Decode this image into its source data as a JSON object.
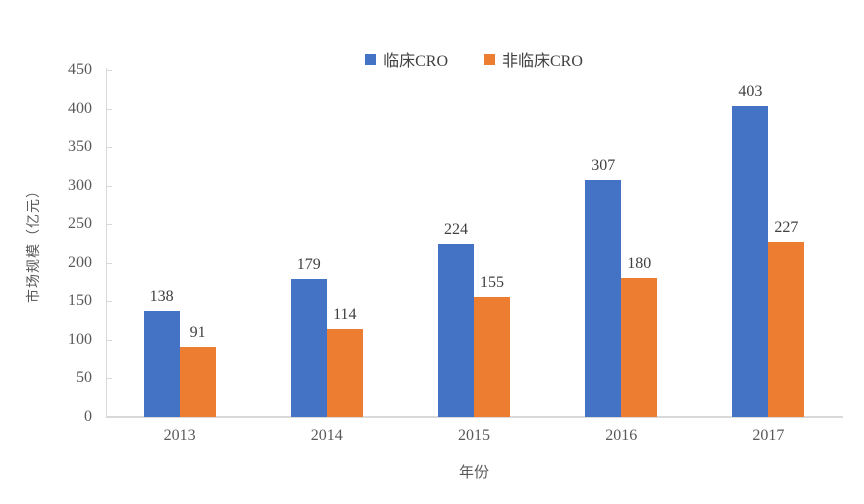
{
  "chart_data": {
    "type": "bar",
    "categories": [
      "2013",
      "2014",
      "2015",
      "2016",
      "2017"
    ],
    "series": [
      {
        "name": "临床CRO",
        "color": "#4472C4",
        "values": [
          138,
          179,
          224,
          307,
          403
        ]
      },
      {
        "name": "非临床CRO",
        "color": "#ED7D31",
        "values": [
          91,
          114,
          155,
          180,
          227
        ]
      }
    ],
    "title": "",
    "xlabel": "年份",
    "ylabel": "市场规模（亿元）",
    "ylim": [
      0,
      450
    ],
    "yticks": [
      0,
      50,
      100,
      150,
      200,
      250,
      300,
      350,
      400,
      450
    ],
    "grid": false,
    "legend_position": "top-center",
    "data_labels": true
  },
  "colors": {
    "axis_line": "#d9d9d9",
    "tick_label": "#595959",
    "data_label": "#404040",
    "background": "#ffffff"
  }
}
